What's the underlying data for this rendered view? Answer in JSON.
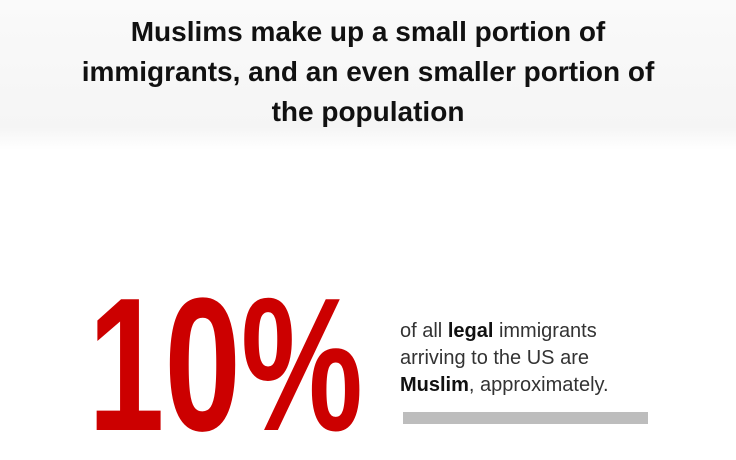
{
  "header": {
    "title": "Muslims make up a small portion of immigrants, and an even smaller portion of the population"
  },
  "stat": {
    "value": "10%",
    "description": [
      {
        "text": "of all ",
        "bold": false
      },
      {
        "text": "legal",
        "bold": true
      },
      {
        "text": " immigrants arriving to the US are ",
        "bold": false
      },
      {
        "text": "Muslim",
        "bold": true
      },
      {
        "text": ", approximately.",
        "bold": false
      }
    ]
  }
}
